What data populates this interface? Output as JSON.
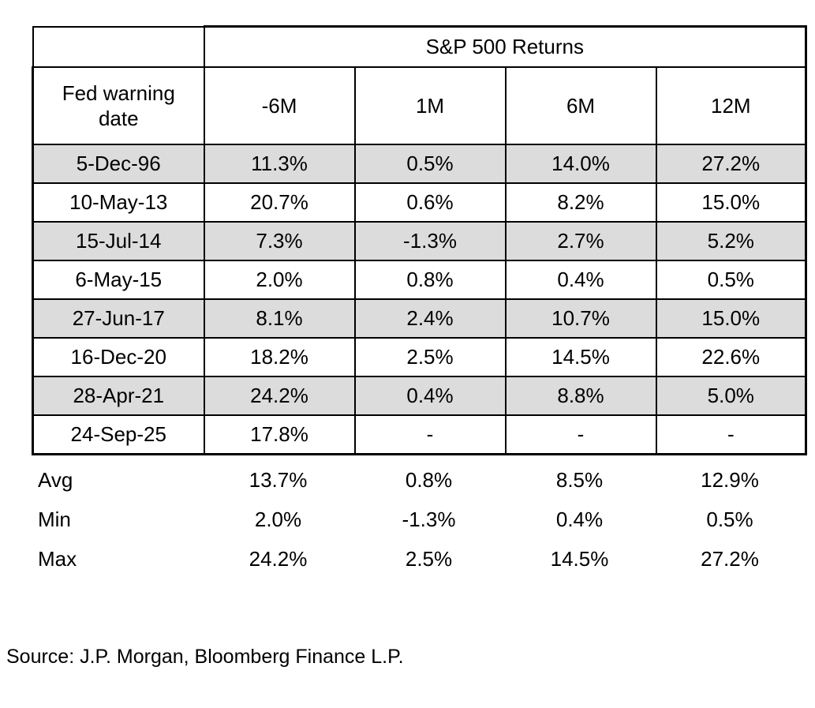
{
  "chart_data": {
    "type": "table",
    "title": "S&P 500 Returns",
    "group_header": "S&P 500 Returns",
    "row_header_label": "Fed warning date",
    "columns": [
      "-6M",
      "1M",
      "6M",
      "12M"
    ],
    "rows": [
      {
        "date": "5-Dec-96",
        "values": [
          "11.3%",
          "0.5%",
          "14.0%",
          "27.2%"
        ],
        "shaded": true
      },
      {
        "date": "10-May-13",
        "values": [
          "20.7%",
          "0.6%",
          "8.2%",
          "15.0%"
        ],
        "shaded": false
      },
      {
        "date": "15-Jul-14",
        "values": [
          "7.3%",
          "-1.3%",
          "2.7%",
          "5.2%"
        ],
        "shaded": true
      },
      {
        "date": "6-May-15",
        "values": [
          "2.0%",
          "0.8%",
          "0.4%",
          "0.5%"
        ],
        "shaded": false
      },
      {
        "date": "27-Jun-17",
        "values": [
          "8.1%",
          "2.4%",
          "10.7%",
          "15.0%"
        ],
        "shaded": true
      },
      {
        "date": "16-Dec-20",
        "values": [
          "18.2%",
          "2.5%",
          "14.5%",
          "22.6%"
        ],
        "shaded": false
      },
      {
        "date": "28-Apr-21",
        "values": [
          "24.2%",
          "0.4%",
          "8.8%",
          "5.0%"
        ],
        "shaded": true
      },
      {
        "date": "24-Sep-25",
        "values": [
          "17.8%",
          "-",
          "-",
          "-"
        ],
        "shaded": false
      }
    ],
    "summary": [
      {
        "label": "Avg",
        "values": [
          "13.7%",
          "0.8%",
          "8.5%",
          "12.9%"
        ]
      },
      {
        "label": "Min",
        "values": [
          "2.0%",
          "-1.3%",
          "0.4%",
          "0.5%"
        ]
      },
      {
        "label": "Max",
        "values": [
          "24.2%",
          "2.5%",
          "14.5%",
          "27.2%"
        ]
      }
    ],
    "layout": {
      "grid": false,
      "row_shade_color": "#dcdcdc",
      "border_color": "#000000"
    }
  },
  "source": "Source: J.P. Morgan, Bloomberg Finance L.P.",
  "colors": {
    "background": "#ffffff",
    "text": "#000000",
    "border": "#000000",
    "row_shade": "#dcdcdc"
  }
}
